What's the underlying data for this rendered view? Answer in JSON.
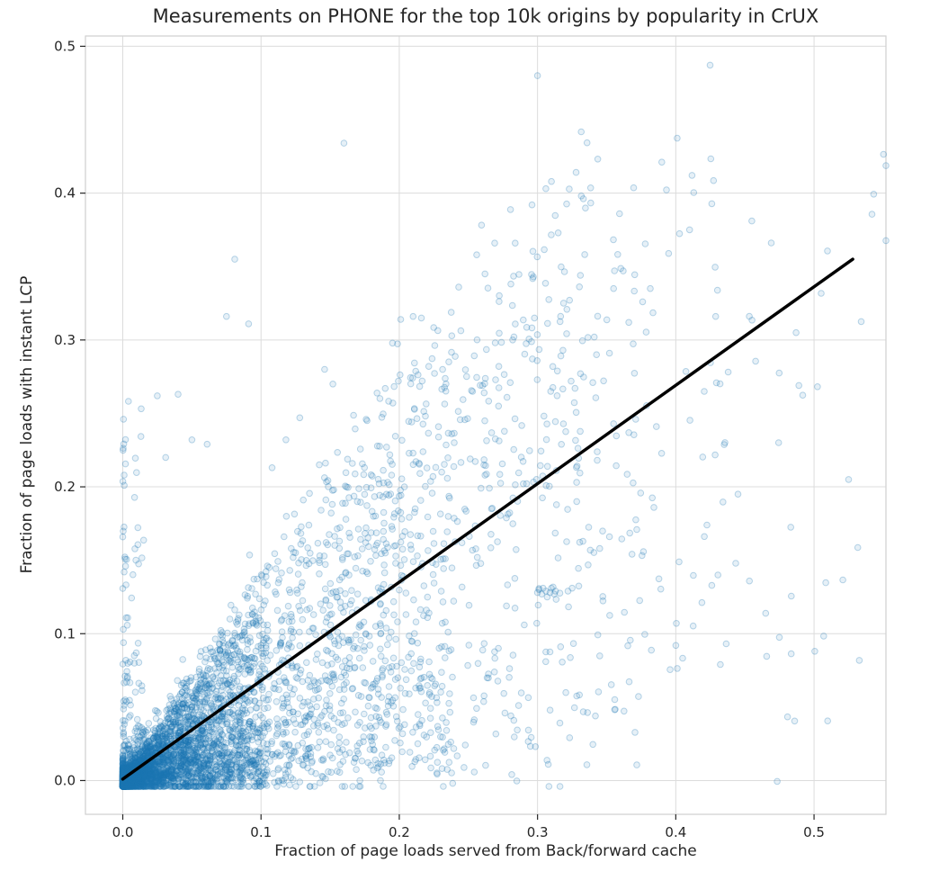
{
  "chart_data": {
    "type": "scatter",
    "title": "Measurements on PHONE for the top 10k origins by popularity in CrUX",
    "xlabel": "Fraction of page loads served from Back/forward cache",
    "ylabel": "Fraction of page loads with instant LCP",
    "xlim": [
      -0.027,
      0.552
    ],
    "ylim": [
      -0.023,
      0.507
    ],
    "xticks": [
      0.0,
      0.1,
      0.2,
      0.3,
      0.4,
      0.5
    ],
    "yticks": [
      0.0,
      0.1,
      0.2,
      0.3,
      0.4,
      0.5
    ],
    "grid": true,
    "grid_color": "#dcdcdc",
    "spine_color": "#cfcfcf",
    "text_color": "#262626",
    "tick_label_format_decimals": 1,
    "marker": {
      "color": "#1f77b4",
      "fill_alpha": 0.11,
      "edge_alpha": 0.3,
      "radius": 3.3
    },
    "regression_line": {
      "color": "#000000",
      "width": 3.5,
      "x": [
        0.0,
        0.528
      ],
      "y": [
        0.001,
        0.355
      ]
    },
    "points_sample": [
      [
        0.16,
        0.434
      ],
      [
        0.3,
        0.48
      ],
      [
        0.306,
        0.403
      ],
      [
        0.296,
        0.392
      ],
      [
        0.081,
        0.355
      ],
      [
        0.075,
        0.316
      ],
      [
        0.091,
        0.311
      ],
      [
        0.41,
        0.375
      ],
      [
        0.455,
        0.381
      ],
      [
        0.487,
        0.305
      ],
      [
        0.525,
        0.205
      ],
      [
        0.445,
        0.195
      ],
      [
        0.4,
        0.092
      ],
      [
        0.025,
        0.262
      ],
      [
        0.04,
        0.263
      ],
      [
        0.031,
        0.22
      ],
      [
        0.05,
        0.232
      ],
      [
        0.061,
        0.229
      ],
      [
        0.001,
        0.208
      ],
      [
        0.002,
        0.146
      ],
      [
        0.001,
        0.142
      ],
      [
        0.21,
        0.316
      ],
      [
        0.216,
        0.315
      ],
      [
        0.201,
        0.314
      ],
      [
        0.243,
        0.336
      ],
      [
        0.256,
        0.358
      ],
      [
        0.262,
        0.345
      ],
      [
        0.355,
        0.335
      ],
      [
        0.362,
        0.347
      ],
      [
        0.366,
        0.312
      ],
      [
        0.341,
        0.302
      ],
      [
        0.352,
        0.291
      ],
      [
        0.376,
        0.326
      ],
      [
        0.331,
        0.344
      ],
      [
        0.3,
        0.128
      ],
      [
        0.303,
        0.127
      ],
      [
        0.306,
        0.129
      ],
      [
        0.309,
        0.128
      ],
      [
        0.312,
        0.127
      ],
      [
        0.304,
        0.131
      ],
      [
        0.307,
        0.125
      ],
      [
        0.301,
        0.13
      ],
      [
        0.31,
        0.131
      ],
      [
        0.313,
        0.129
      ],
      [
        0.322,
        0.129
      ],
      [
        0.325,
        0.131
      ],
      [
        0.345,
        0.158
      ],
      [
        0.352,
        0.166
      ],
      [
        0.371,
        0.246
      ],
      [
        0.386,
        0.241
      ],
      [
        0.146,
        0.28
      ],
      [
        0.152,
        0.27
      ],
      [
        0.128,
        0.247
      ],
      [
        0.118,
        0.232
      ],
      [
        0.108,
        0.213
      ],
      [
        0.34,
        0.271
      ],
      [
        0.355,
        0.243
      ],
      [
        0.297,
        0.343
      ],
      [
        0.282,
        0.3
      ],
      [
        0.272,
        0.282
      ]
    ],
    "point_cloud": {
      "seed": 7,
      "clusters": [
        {
          "n": 2300,
          "x": [
            0.0,
            0.105,
            2.6
          ],
          "s": [
            0.0,
            1.35,
            1.7
          ],
          "noise": 0.0045
        },
        {
          "n": 1400,
          "x": [
            0.0,
            0.24,
            1.9
          ],
          "s": [
            0.05,
            1.5,
            1.8
          ],
          "noise": 0.009
        },
        {
          "n": 620,
          "x": [
            0.04,
            0.345,
            1.5
          ],
          "s": [
            0.08,
            1.35,
            1.5
          ],
          "noise": 0.014
        },
        {
          "n": 250,
          "x": [
            0.12,
            0.44,
            1.25
          ],
          "s": [
            0.15,
            1.15,
            1.2
          ],
          "noise": 0.022
        },
        {
          "n": 75,
          "x": [
            0.28,
            0.56,
            1.0
          ],
          "s": [
            0.1,
            0.85,
            1.1
          ],
          "noise": 0.03
        },
        {
          "n": 150,
          "x": [
            0.0,
            0.016,
            1.6
          ],
          "s": [
            0.0,
            1.0,
            1.0
          ],
          "yadd": [
            0.0,
            0.26,
            3.0
          ],
          "noise": 0.003
        },
        {
          "n": 150,
          "x": [
            0.17,
            0.335,
            1.1
          ],
          "s": [
            0.5,
            1.05,
            1.0
          ],
          "yadd": [
            0.0,
            0.1,
            1.6
          ],
          "noise": 0.015
        }
      ]
    }
  }
}
